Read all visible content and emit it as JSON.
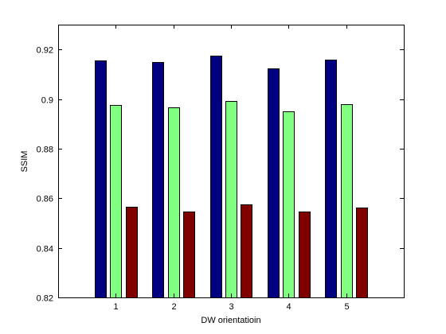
{
  "chart_data": {
    "type": "bar",
    "title": "",
    "xlabel": "DW orientatioin",
    "ylabel": "SSIM",
    "categories": [
      "1",
      "2",
      "3",
      "4",
      "5"
    ],
    "xlim": [
      0,
      6
    ],
    "ylim": [
      0.82,
      0.93
    ],
    "yticks": [
      0.82,
      0.84,
      0.86,
      0.88,
      0.9,
      0.92
    ],
    "ytick_labels": [
      "0.82",
      "0.84",
      "0.86",
      "0.88",
      "0.9",
      "0.92"
    ],
    "grid": false,
    "legend": "none",
    "series": [
      {
        "color": "#000080",
        "values": [
          0.9155,
          0.915,
          0.9175,
          0.9123,
          0.9158
        ]
      },
      {
        "color": "#80ff80",
        "values": [
          0.8977,
          0.8965,
          0.8991,
          0.8949,
          0.8978
        ]
      },
      {
        "color": "#800000",
        "values": [
          0.8565,
          0.8545,
          0.8575,
          0.8545,
          0.8561
        ]
      }
    ]
  }
}
